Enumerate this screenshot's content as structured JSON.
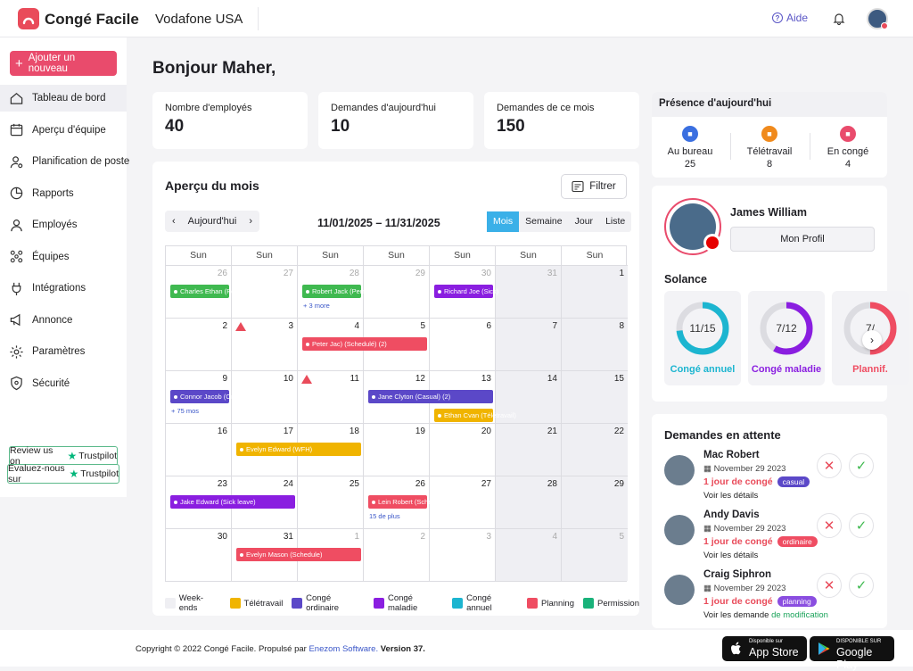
{
  "app": {
    "name": "Congé Facile",
    "company": "Vodafone USA",
    "help": "Aide"
  },
  "sidebar": {
    "add_button": "Ajouter un nouveau",
    "items": [
      {
        "label": "Tableau de bord",
        "icon": "home-icon",
        "active": true
      },
      {
        "label": "Aperçu d'équipe",
        "icon": "calendar-icon"
      },
      {
        "label": "Planification de poste",
        "icon": "user-pin-icon"
      },
      {
        "label": "Rapports",
        "icon": "pie-chart-icon"
      },
      {
        "label": "Employés",
        "icon": "user-icon"
      },
      {
        "label": "Équipes",
        "icon": "team-icon"
      },
      {
        "label": "Intégrations",
        "icon": "plug-icon"
      },
      {
        "label": "Annonce",
        "icon": "megaphone-icon"
      },
      {
        "label": "Paramètres",
        "icon": "gear-icon"
      },
      {
        "label": "Sécurité",
        "icon": "shield-icon"
      }
    ],
    "trustpilot_review": "Review us on",
    "trustpilot_rate": "Évaluez-nous sur",
    "trustpilot": "Trustpilot"
  },
  "greeting": "Bonjour Maher,",
  "stats": [
    {
      "label": "Nombre d'employés",
      "value": "40"
    },
    {
      "label": "Demandes d'aujourd'hui",
      "value": "10"
    },
    {
      "label": "Demandes de ce mois",
      "value": "150"
    }
  ],
  "calendar": {
    "title": "Aperçu du mois",
    "filter": "Filtrer",
    "today": "Aujourd'hui",
    "range": "11/01/2025 – 11/31/2025",
    "views": [
      "Mois",
      "Semaine",
      "Jour",
      "Liste"
    ],
    "active_view": "Mois",
    "weekday": "Sun",
    "weeks": [
      [
        "26",
        "27",
        "28",
        "29",
        "30",
        "31",
        "1"
      ],
      [
        "2",
        "3",
        "4",
        "5",
        "6",
        "7",
        "8"
      ],
      [
        "9",
        "10",
        "11",
        "12",
        "13",
        "14",
        "15"
      ],
      [
        "16",
        "17",
        "18",
        "19",
        "20",
        "21",
        "22"
      ],
      [
        "23",
        "24",
        "25",
        "26",
        "27",
        "28",
        "29"
      ],
      [
        "30",
        "31",
        "1",
        "2",
        "3",
        "4",
        "5"
      ]
    ],
    "events": [
      {
        "label": "Charles Ethan (Permission)",
        "color": "#3fb950",
        "week": 0,
        "start": 0,
        "span": 1
      },
      {
        "label": "Robert Jack (Permission)",
        "color": "#3fb950",
        "week": 0,
        "start": 2,
        "span": 1
      },
      {
        "label": "Richard Joe (Sick)",
        "color": "#8a1ee0",
        "week": 0,
        "start": 4,
        "span": 1
      },
      {
        "label": "Peter Jac) (Schedulé) (2)",
        "color": "#ef4d62",
        "week": 1,
        "start": 2,
        "span": 2
      },
      {
        "label": "Connor Jacob (Ordinaire)",
        "color": "#5b48c8",
        "week": 2,
        "start": 0,
        "span": 1
      },
      {
        "label": "Jane Clyton (Casual) (2)",
        "color": "#5b48c8",
        "week": 2,
        "start": 3,
        "span": 2
      },
      {
        "label": "Ethan Cvan (Télétravail)",
        "color": "#f0b400",
        "week": 2,
        "start": 4,
        "span": 1,
        "row": 1
      },
      {
        "label": "Evelyn Edward (WFH)",
        "color": "#f0b400",
        "week": 3,
        "start": 1,
        "span": 2
      },
      {
        "label": "Jake Edward (Sick leave)",
        "color": "#8a1ee0",
        "week": 4,
        "start": 0,
        "span": 2
      },
      {
        "label": "Lein Robert (Schedule)",
        "color": "#ef4d62",
        "week": 4,
        "start": 3,
        "span": 1
      },
      {
        "label": "Evelyn Mason (Schedule)",
        "color": "#ef4d62",
        "week": 5,
        "start": 1,
        "span": 2
      }
    ],
    "more": [
      {
        "label": "+ 3 more",
        "week": 0,
        "day": 2
      },
      {
        "label": "+ 75 mos",
        "week": 2,
        "day": 0
      },
      {
        "label": "15 de plus",
        "week": 4,
        "day": 3
      }
    ],
    "warnings": [
      {
        "week": 1,
        "day": 1
      },
      {
        "week": 2,
        "day": 2
      }
    ],
    "legend": [
      {
        "label": "Week-ends",
        "color": "#efeff3"
      },
      {
        "label": "Télétravail",
        "color": "#f0b400"
      },
      {
        "label": "Congé ordinaire",
        "color": "#5b48c8"
      },
      {
        "label": "Congé maladie",
        "color": "#8a1ee0"
      },
      {
        "label": "Congé annuel",
        "color": "#1cb5d0"
      },
      {
        "label": "Planning",
        "color": "#ef4d62"
      },
      {
        "label": "Permission",
        "color": "#19b27a"
      }
    ]
  },
  "presence": {
    "title": "Présence d'aujourd'hui",
    "items": [
      {
        "label": "Au bureau",
        "value": "25",
        "color": "#3a6fe0"
      },
      {
        "label": "Télétravail",
        "value": "8",
        "color": "#f08a1c"
      },
      {
        "label": "En congé",
        "value": "4",
        "color": "#e94b6c"
      }
    ]
  },
  "profile": {
    "name": "James William",
    "button": "Mon Profil",
    "solance_title": "Solance",
    "balances": [
      {
        "label": "Congé annuel",
        "value": "11/15",
        "fraction": 0.733,
        "color": "#1cb5d0"
      },
      {
        "label": "Congé maladie",
        "value": "7/12",
        "fraction": 0.583,
        "color": "#8a1ee0"
      },
      {
        "label": "Plannif.",
        "value": "7/",
        "fraction": 0.5,
        "color": "#ef4d62"
      }
    ]
  },
  "pending": {
    "title": "Demandes en attente",
    "requests": [
      {
        "name": "Mac Robert",
        "date": "November 29 2023",
        "type": "1 jour de congé",
        "tag": "casual",
        "tag_color": "#5b48c8",
        "link": "Voir les détails",
        "link_extra": ""
      },
      {
        "name": "Andy Davis",
        "date": "November 29 2023",
        "type": "1 jour de congé",
        "tag": "ordinaire",
        "tag_color": "#ef4d62",
        "link": "Voir les détails",
        "link_extra": ""
      },
      {
        "name": "Craig Siphron",
        "date": "November 29 2023",
        "type": "1 jour de congé",
        "tag": "planning",
        "tag_color": "#8a4ee0",
        "link": "Voir les demande",
        "link_extra": "de modification"
      }
    ]
  },
  "footer": {
    "copyright": "Copyright © 2022 Congé Facile. Propulsé par",
    "link": "Enezom Software.",
    "version": "Version 37.",
    "appstore_small": "Disponible sur",
    "appstore": "App Store",
    "googleplay_small": "DISPONIBLE SUR",
    "googleplay": "Google Play"
  }
}
